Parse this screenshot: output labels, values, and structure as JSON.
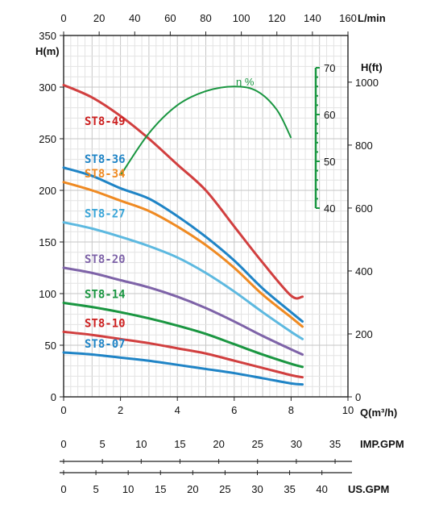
{
  "chart_data": {
    "type": "line",
    "xlabel": "Q(m³/h)",
    "ylabel": "H(m)",
    "x_ticks": [
      "0",
      "2",
      "4",
      "6",
      "8",
      "10"
    ],
    "xlim": [
      0,
      10
    ],
    "ylim": [
      0,
      350
    ],
    "y_ticks": [
      "0",
      "50",
      "100",
      "150",
      "200",
      "250",
      "300",
      "350"
    ],
    "grid": true,
    "top_axis": {
      "label": "L/min",
      "ticks": [
        "0",
        "20",
        "40",
        "60",
        "80",
        "100",
        "120",
        "140",
        "160"
      ]
    },
    "right_axis": {
      "label": "H(ft)",
      "ticks": [
        "0",
        "200",
        "400",
        "600",
        "800",
        "1000"
      ]
    },
    "efficiency_axis": {
      "label": "η %",
      "ticks": [
        "40",
        "50",
        "60",
        "70"
      ],
      "range": [
        40,
        70
      ],
      "color": "#1a9641"
    },
    "imp_gpm_axis": {
      "label": "IMP.GPM",
      "ticks": [
        "0",
        "5",
        "10",
        "15",
        "20",
        "25",
        "30",
        "35"
      ]
    },
    "us_gpm_axis": {
      "label": "US.GPM",
      "ticks": [
        "0",
        "5",
        "10",
        "15",
        "20",
        "25",
        "30",
        "35",
        "40"
      ]
    },
    "series": [
      {
        "name": "ST8-49",
        "color": "#d13f3f",
        "label_color": "#cc1f1f",
        "x": [
          0,
          1,
          2,
          3,
          4,
          5,
          6,
          7,
          8,
          8.4
        ],
        "y": [
          302,
          290,
          272,
          250,
          225,
          200,
          165,
          130,
          98,
          97
        ]
      },
      {
        "name": "ST8-36",
        "color": "#1f84c6",
        "label_color": "#1f84c6",
        "x": [
          0,
          1,
          2,
          3,
          4,
          5,
          6,
          7,
          8,
          8.4
        ],
        "y": [
          222,
          214,
          202,
          192,
          175,
          155,
          132,
          105,
          82,
          73
        ]
      },
      {
        "name": "ST8-34",
        "color": "#ef8a22",
        "label_color": "#ef8a22",
        "x": [
          0,
          1,
          2,
          3,
          4,
          5,
          6,
          7,
          8,
          8.4
        ],
        "y": [
          208,
          200,
          190,
          180,
          165,
          147,
          125,
          99,
          77,
          68
        ]
      },
      {
        "name": "ST8-27",
        "color": "#5db9e0",
        "label_color": "#3aa5d8",
        "x": [
          0,
          1,
          2,
          3,
          4,
          5,
          6,
          7,
          8,
          8.4
        ],
        "y": [
          169,
          163,
          155,
          146,
          135,
          120,
          102,
          82,
          63,
          56
        ]
      },
      {
        "name": "ST8-20",
        "color": "#7e63a8",
        "label_color": "#7e63a8",
        "x": [
          0,
          1,
          2,
          3,
          4,
          5,
          6,
          7,
          8,
          8.4
        ],
        "y": [
          125,
          120,
          113,
          106,
          97,
          86,
          73,
          59,
          46,
          41
        ]
      },
      {
        "name": "ST8-14",
        "color": "#1a9641",
        "label_color": "#1a9641",
        "x": [
          0,
          1,
          2,
          3,
          4,
          5,
          6,
          7,
          8,
          8.4
        ],
        "y": [
          91,
          87,
          82,
          76,
          69,
          61,
          51,
          41,
          32,
          29
        ]
      },
      {
        "name": "ST8-10",
        "color": "#d13f3f",
        "label_color": "#cc1f1f",
        "x": [
          0,
          1,
          2,
          3,
          4,
          5,
          6,
          7,
          8,
          8.4
        ],
        "y": [
          63,
          60,
          56,
          52,
          47,
          42,
          35,
          28,
          21,
          19
        ]
      },
      {
        "name": "ST8-07",
        "color": "#1f84c6",
        "label_color": "#1f84c6",
        "x": [
          0,
          1,
          2,
          3,
          4,
          5,
          6,
          7,
          8,
          8.4
        ],
        "y": [
          43,
          41,
          38,
          35,
          31,
          27,
          23,
          18,
          13,
          12
        ]
      }
    ],
    "efficiency_series": {
      "color": "#1a9641",
      "x": [
        2,
        3,
        4,
        5,
        6,
        6.8,
        7.5,
        8
      ],
      "y": [
        47,
        56,
        62,
        65,
        66,
        65,
        61,
        55
      ]
    }
  }
}
